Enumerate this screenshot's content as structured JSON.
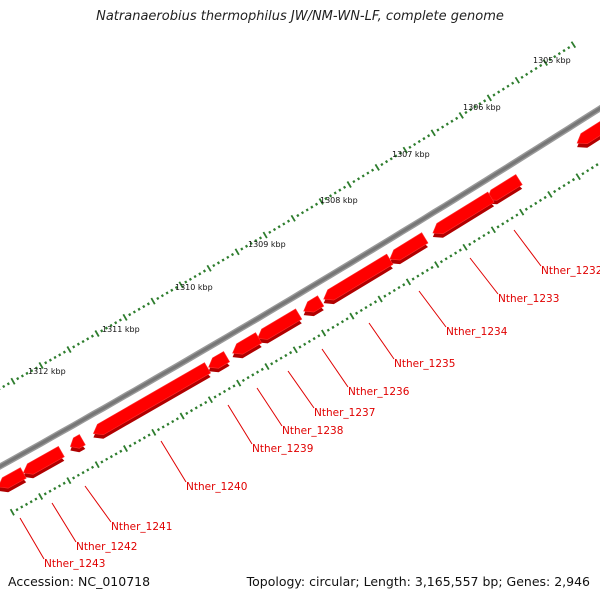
{
  "title": "Natranaerobius thermophilus JW/NM-WN-LF, complete genome",
  "accession": "Accession: NC_010718",
  "summary": "Topology: circular; Length: 3,165,557 bp; Genes: 2,946",
  "colors": {
    "gene_fill": "#ff0000",
    "gene_shade": "#b00000",
    "backbone": "#777777",
    "tick": "#2e7d2e",
    "label": "#e00000"
  },
  "kbp_ticks": [
    "1305 kbp",
    "1306 kbp",
    "1307 kbp",
    "1308 kbp",
    "1309 kbp",
    "1310 kbp",
    "1311 kbp",
    "1312 kbp"
  ],
  "genes": [
    "Nther_1232",
    "Nther_1233",
    "Nther_1234",
    "Nther_1235",
    "Nther_1236",
    "Nther_1237",
    "Nther_1238",
    "Nther_1239",
    "Nther_1240",
    "Nther_1241",
    "Nther_1242",
    "Nther_1243"
  ]
}
